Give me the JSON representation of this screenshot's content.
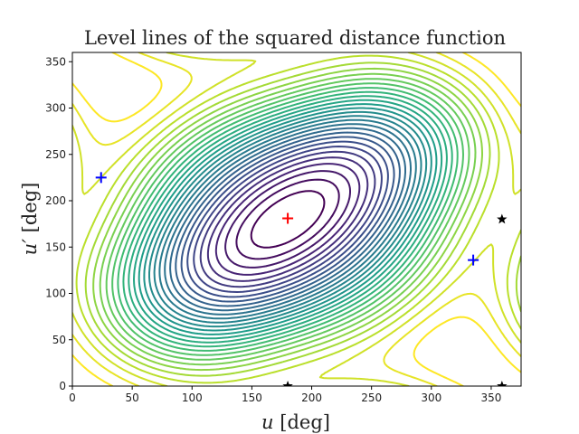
{
  "chart_data": {
    "type": "contour",
    "title": "Level lines of the squared distance function",
    "xlabel_main": "u",
    "xlabel_unit": " [deg]",
    "ylabel_main": "u′",
    "ylabel_unit": " [deg]",
    "xlim": [
      0,
      375
    ],
    "ylim": [
      0,
      360
    ],
    "xticks": [
      0,
      50,
      100,
      150,
      200,
      250,
      300,
      350
    ],
    "yticks": [
      0,
      50,
      100,
      150,
      200,
      250,
      300,
      350
    ],
    "colormap": "viridis",
    "level_count": 30,
    "markers": [
      {
        "symbol": "plus",
        "color": "#ff0000",
        "x": 180,
        "y": 181
      },
      {
        "symbol": "plus",
        "color": "#0000ff",
        "x": 24,
        "y": 225
      },
      {
        "symbol": "plus",
        "color": "#0000ff",
        "x": 335,
        "y": 136
      },
      {
        "symbol": "star",
        "color": "#000000",
        "x": 359,
        "y": 180
      },
      {
        "symbol": "star",
        "color": "#000000",
        "x": 359,
        "y": 0
      },
      {
        "symbol": "star",
        "color": "#000000",
        "x": 180,
        "y": 0
      }
    ]
  }
}
